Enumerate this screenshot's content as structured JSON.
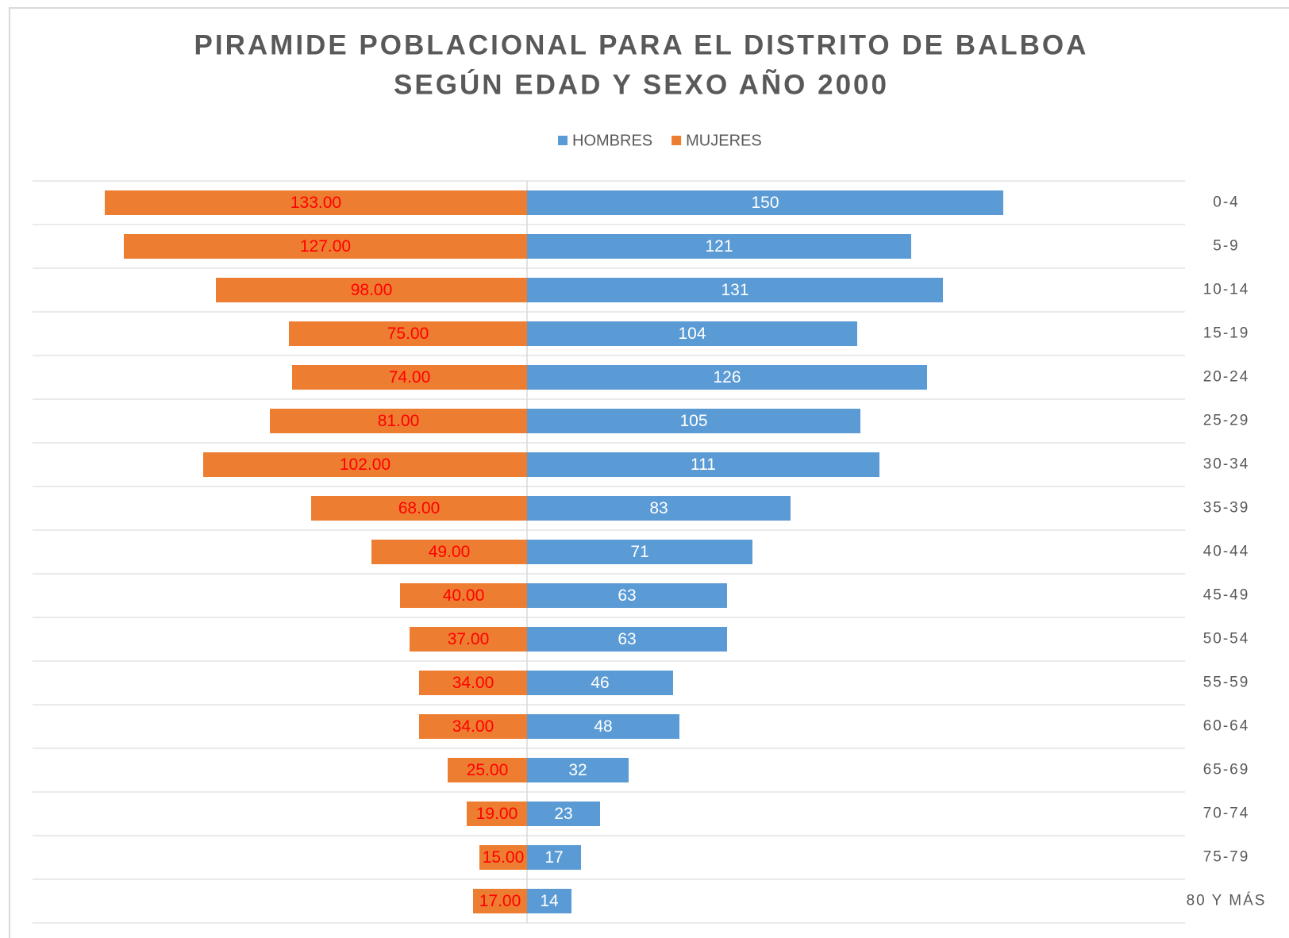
{
  "chart_data": {
    "type": "bar",
    "title": "PIRAMIDE POBLACIONAL PARA EL DISTRITO DE BALBOA",
    "subtitle": "SEGÚN EDAD Y SEXO AÑO 2000",
    "categories": [
      "0-4",
      "5-9",
      "10-14",
      "15-19",
      "20-24",
      "25-29",
      "30-34",
      "35-39",
      "40-44",
      "45-49",
      "50-54",
      "55-59",
      "60-64",
      "65-69",
      "70-74",
      "75-79",
      "80 Y MÁS"
    ],
    "series": [
      {
        "name": "HOMBRES",
        "color": "#5b9bd5",
        "label_color": "#ffffff",
        "values": [
          150,
          121,
          131,
          104,
          126,
          105,
          111,
          83,
          71,
          63,
          63,
          46,
          48,
          32,
          23,
          17,
          14
        ]
      },
      {
        "name": "MUJERES",
        "color": "#ed7d31",
        "label_color": "#ff0000",
        "values": [
          133,
          127,
          98,
          75,
          74,
          81,
          102,
          68,
          49,
          40,
          37,
          34,
          34,
          25,
          19,
          15,
          17
        ],
        "value_labels": [
          "133.00",
          "127.00",
          "98.00",
          "75.00",
          "74.00",
          "81.00",
          "102.00",
          "68.00",
          "49.00",
          "40.00",
          "37.00",
          "34.00",
          "34.00",
          "25.00",
          "19.00",
          "15.00",
          "17.00"
        ]
      }
    ],
    "legend": "top",
    "grid": true
  }
}
